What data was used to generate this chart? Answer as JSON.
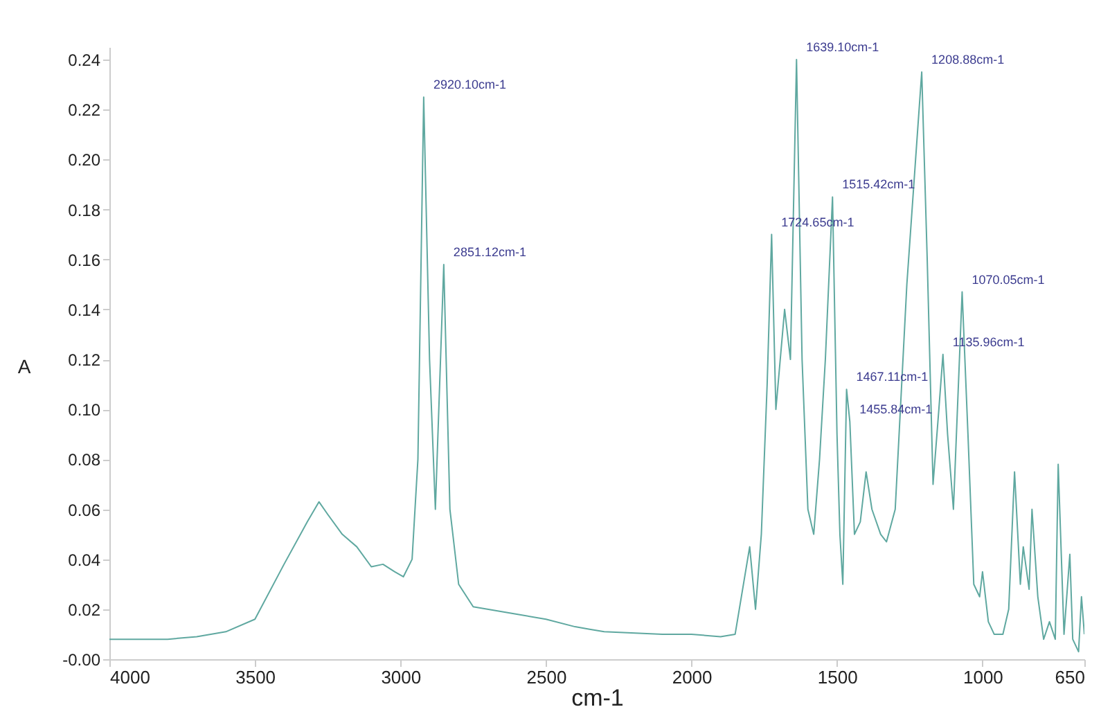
{
  "chart_data": {
    "type": "line",
    "xlabel": "cm-1",
    "ylabel": "A",
    "x": [
      4000,
      3800,
      3700,
      3600,
      3500,
      3400,
      3320,
      3280,
      3250,
      3200,
      3150,
      3100,
      3060,
      3020,
      2990,
      2960,
      2940,
      2920.1,
      2900,
      2880,
      2851.12,
      2830,
      2800,
      2750,
      2600,
      2500,
      2400,
      2350,
      2300,
      2100,
      2000,
      1900,
      1850,
      1800,
      1780,
      1760,
      1740,
      1724.65,
      1710,
      1680,
      1660,
      1639.1,
      1620,
      1600,
      1580,
      1560,
      1540,
      1515.42,
      1500,
      1490,
      1480,
      1467.11,
      1455.84,
      1440,
      1420,
      1400,
      1380,
      1350,
      1330,
      1300,
      1260,
      1230,
      1208.88,
      1190,
      1170,
      1150,
      1135.96,
      1120,
      1100,
      1070.05,
      1050,
      1030,
      1010,
      1000,
      980,
      960,
      930,
      910,
      890,
      870,
      860,
      840,
      830,
      810,
      790,
      770,
      750,
      740,
      720,
      700,
      690,
      670,
      660,
      650
    ],
    "series": [
      {
        "color": "#5fa8a0",
        "values": [
          0.008,
          0.008,
          0.009,
          0.011,
          0.016,
          0.038,
          0.055,
          0.063,
          0.058,
          0.05,
          0.045,
          0.037,
          0.038,
          0.035,
          0.033,
          0.04,
          0.08,
          0.225,
          0.12,
          0.06,
          0.158,
          0.06,
          0.03,
          0.021,
          0.018,
          0.016,
          0.013,
          0.012,
          0.011,
          0.01,
          0.01,
          0.009,
          0.01,
          0.045,
          0.02,
          0.05,
          0.11,
          0.17,
          0.1,
          0.14,
          0.12,
          0.24,
          0.12,
          0.06,
          0.05,
          0.08,
          0.12,
          0.185,
          0.09,
          0.05,
          0.03,
          0.108,
          0.095,
          0.05,
          0.055,
          0.075,
          0.06,
          0.05,
          0.047,
          0.06,
          0.15,
          0.2,
          0.235,
          0.16,
          0.07,
          0.1,
          0.122,
          0.09,
          0.06,
          0.147,
          0.09,
          0.03,
          0.025,
          0.035,
          0.015,
          0.01,
          0.01,
          0.02,
          0.075,
          0.03,
          0.045,
          0.028,
          0.06,
          0.025,
          0.008,
          0.015,
          0.008,
          0.078,
          0.01,
          0.042,
          0.008,
          0.003,
          0.025,
          0.01
        ]
      }
    ],
    "xlim": [
      4000,
      650
    ],
    "xticks": [
      4000,
      3500,
      3000,
      2500,
      2000,
      1500,
      1000,
      650
    ],
    "ylim": [
      0,
      0.245
    ],
    "yticks": [
      {
        "value": 0,
        "label": "-0.00"
      },
      {
        "value": 0.02,
        "label": "0.02"
      },
      {
        "value": 0.04,
        "label": "0.04"
      },
      {
        "value": 0.06,
        "label": "0.06"
      },
      {
        "value": 0.08,
        "label": "0.08"
      },
      {
        "value": 0.1,
        "label": "0.10"
      },
      {
        "value": 0.12,
        "label": "0.12"
      },
      {
        "value": 0.14,
        "label": "0.14"
      },
      {
        "value": 0.16,
        "label": "0.16"
      },
      {
        "value": 0.18,
        "label": "0.18"
      },
      {
        "value": 0.2,
        "label": "0.20"
      },
      {
        "value": 0.22,
        "label": "0.22"
      },
      {
        "value": 0.24,
        "label": "0.24"
      }
    ],
    "annotations": [
      {
        "text": "2920.10cm-1",
        "x": 2920.1,
        "y": 0.225
      },
      {
        "text": "2851.12cm-1",
        "x": 2851.12,
        "y": 0.158
      },
      {
        "text": "1639.10cm-1",
        "x": 1639.1,
        "y": 0.24
      },
      {
        "text": "1208.88cm-1",
        "x": 1208.88,
        "y": 0.235
      },
      {
        "text": "1515.42cm-1",
        "x": 1515.42,
        "y": 0.185
      },
      {
        "text": "1724.65cm-1",
        "x": 1724.65,
        "y": 0.17
      },
      {
        "text": "1070.05cm-1",
        "x": 1070.05,
        "y": 0.147
      },
      {
        "text": "1135.96cm-1",
        "x": 1135.96,
        "y": 0.122
      },
      {
        "text": "1467.11cm-1",
        "x": 1467.11,
        "y": 0.108
      },
      {
        "text": "1455.84cm-1",
        "x": 1455.84,
        "y": 0.095
      }
    ],
    "grid": false,
    "marker": "none",
    "line_style": "solid"
  }
}
